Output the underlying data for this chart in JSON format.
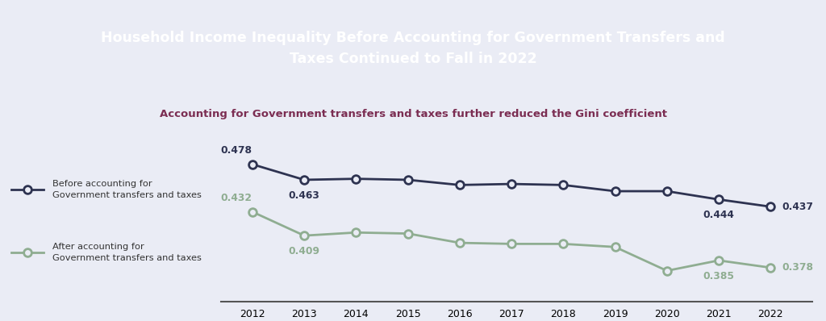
{
  "title": "Household Income Inequality Before Accounting for Government Transfers and\nTaxes Continued to Fall in 2022",
  "subtitle": "Accounting for Government transfers and taxes further reduced the Gini coefficient",
  "title_bg_color": "#6b2150",
  "title_text_color": "#ffffff",
  "subtitle_color": "#7b2d52",
  "bg_color": "#eaecf5",
  "years": [
    2012,
    2013,
    2014,
    2015,
    2016,
    2017,
    2018,
    2019,
    2020,
    2021,
    2022
  ],
  "before_values": [
    0.478,
    0.463,
    0.464,
    0.463,
    0.458,
    0.459,
    0.458,
    0.452,
    0.452,
    0.444,
    0.437
  ],
  "after_values": [
    0.432,
    0.409,
    0.412,
    0.411,
    0.402,
    0.401,
    0.401,
    0.398,
    0.375,
    0.385,
    0.378
  ],
  "before_color": "#2e3351",
  "after_color": "#8fad91",
  "before_label_line1": "Before accounting for",
  "before_label_line2": "Government transfers and taxes",
  "after_label_line1": "After accounting for",
  "after_label_line2": "Government transfers and taxes",
  "marker_size": 7,
  "linewidth": 2.0,
  "ylim": [
    0.345,
    0.505
  ],
  "xlim": [
    2011.4,
    2022.8
  ]
}
